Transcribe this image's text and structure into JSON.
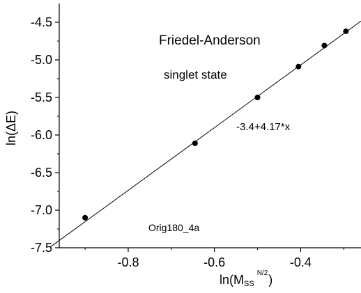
{
  "chart_data": {
    "type": "scatter",
    "title": "",
    "xlabel_main": "ln(M",
    "xlabel_sub": "SS",
    "xlabel_sup": "N/2",
    "xlabel_close": ")",
    "ylabel": "ln(ΔE)",
    "xlim": [
      -0.96,
      -0.26
    ],
    "ylim": [
      -7.5,
      -4.25
    ],
    "xticks": [
      -0.8,
      -0.6,
      -0.4
    ],
    "xtick_labels": [
      "-0.8",
      "-0.6",
      "-0.4"
    ],
    "yticks": [
      -7.5,
      -7.0,
      -6.5,
      -6.0,
      -5.5,
      -5.0,
      -4.5
    ],
    "ytick_labels": [
      "-7.5",
      "-7.0",
      "-6.5",
      "-6.0",
      "-5.5",
      "-5.0",
      "-4.5"
    ],
    "series": [
      {
        "points": [
          {
            "x": -0.9,
            "y": -7.1
          },
          {
            "x": -0.645,
            "y": -6.11
          },
          {
            "x": -0.5,
            "y": -5.5
          },
          {
            "x": -0.405,
            "y": -5.09
          },
          {
            "x": -0.345,
            "y": -4.81
          },
          {
            "x": -0.295,
            "y": -4.62
          }
        ],
        "color": "#000000"
      }
    ],
    "fit": {
      "intercept": -3.4,
      "slope": 4.17,
      "color": "#000000"
    },
    "annotations": {
      "method": "Friedel-Anderson",
      "state": "singlet state",
      "fit_equation": "-3.4+4.17*x",
      "figure_id": "Orig180_4a"
    },
    "grid": false,
    "legend": "none"
  }
}
